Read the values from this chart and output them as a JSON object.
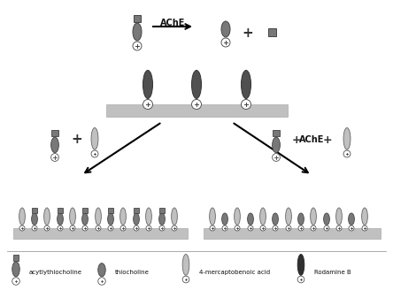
{
  "bg_color": "#ffffff",
  "gray_light": "#c0c0c0",
  "gray_med": "#787878",
  "gray_dark": "#505050",
  "gray_darkest": "#303030",
  "text_color": "#111111",
  "legend_labels": [
    "acytlythiocholine",
    "thiocholine",
    "4-mercaptobenoic acid",
    "Rodamine B"
  ],
  "ache_label": "AChE",
  "figsize": [
    4.44,
    3.37
  ],
  "dpi": 100
}
